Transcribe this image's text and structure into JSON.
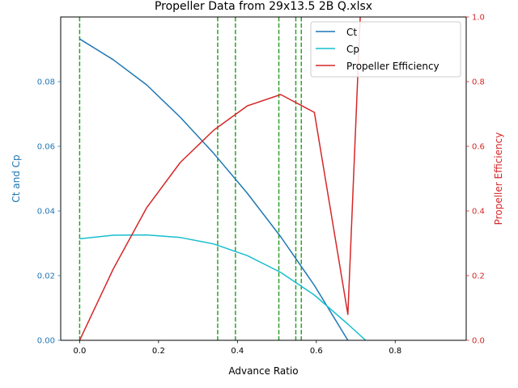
{
  "chart_data": {
    "type": "line",
    "title": "Propeller Data from 29x13.5 2B Q.xlsx",
    "xlabel": "Advance Ratio",
    "ylabel_left": "Ct and Cp",
    "ylabel_right": "Propeller Efficiency",
    "xlim": [
      -0.048,
      0.98
    ],
    "ylim_left": [
      0,
      0.1
    ],
    "ylim_right": [
      0,
      1.0
    ],
    "x_ticks": [
      0.0,
      0.2,
      0.4,
      0.6,
      0.8
    ],
    "x_tick_labels": [
      "0.0",
      "0.2",
      "0.4",
      "0.6",
      "0.8"
    ],
    "y_left_ticks": [
      0.0,
      0.02,
      0.04,
      0.06,
      0.08
    ],
    "y_left_tick_labels": [
      "0.00",
      "0.02",
      "0.04",
      "0.06",
      "0.08"
    ],
    "y_right_ticks": [
      0.0,
      0.2,
      0.4,
      0.6,
      0.8,
      1.0
    ],
    "y_right_tick_labels": [
      "0.0",
      "0.2",
      "0.4",
      "0.6",
      "0.8",
      "1.0"
    ],
    "legend_position": "top-right",
    "vlines": {
      "x": [
        0.0,
        0.35,
        0.395,
        0.505,
        0.548,
        0.562
      ],
      "color": "#2ca02c",
      "style": "dashed"
    },
    "series": [
      {
        "name": "Ct",
        "axis": "left",
        "color": "#1f77b4",
        "x": [
          0.0,
          0.085,
          0.17,
          0.255,
          0.34,
          0.425,
          0.51,
          0.595,
          0.68
        ],
        "y": [
          0.0932,
          0.0868,
          0.079,
          0.069,
          0.0578,
          0.0455,
          0.032,
          0.017,
          0.0
        ]
      },
      {
        "name": "Cp",
        "axis": "left",
        "color": "#17becf",
        "x": [
          0.0,
          0.085,
          0.17,
          0.255,
          0.34,
          0.425,
          0.51,
          0.595,
          0.68,
          0.725
        ],
        "y": [
          0.0314,
          0.0325,
          0.0326,
          0.0318,
          0.0298,
          0.0262,
          0.021,
          0.014,
          0.005,
          0.0
        ]
      },
      {
        "name": "Propeller Efficiency",
        "axis": "right",
        "color": "#d62728",
        "x": [
          0.0,
          0.085,
          0.17,
          0.255,
          0.34,
          0.425,
          0.51,
          0.595,
          0.68,
          0.712
        ],
        "y": [
          0.0,
          0.22,
          0.41,
          0.55,
          0.65,
          0.725,
          0.76,
          0.705,
          0.08,
          1.02
        ]
      }
    ]
  }
}
